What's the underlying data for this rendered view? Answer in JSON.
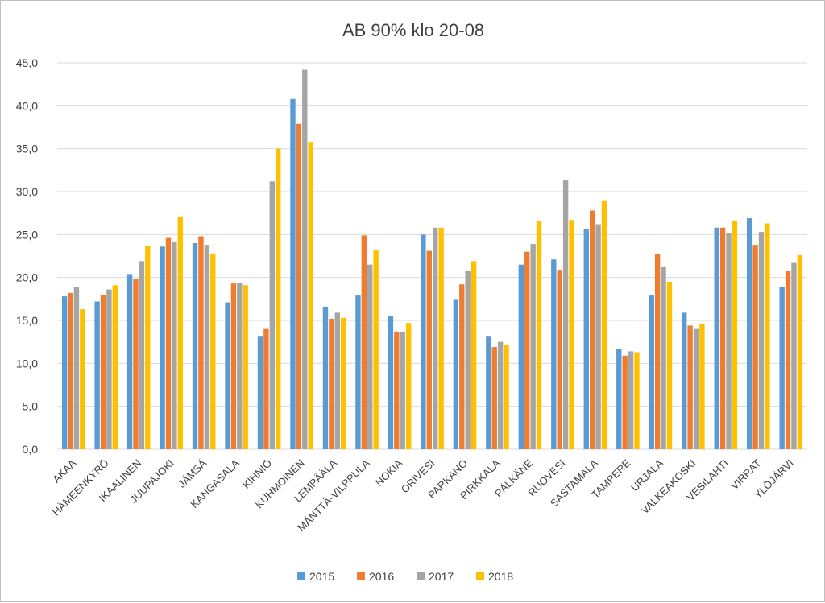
{
  "chart_data": {
    "type": "bar",
    "title": "AB 90% klo 20-08",
    "xlabel": "",
    "ylabel": "",
    "ylim": [
      0,
      45
    ],
    "ytick_step": 5,
    "ytick_labels": [
      "0,0",
      "5,0",
      "10,0",
      "15,0",
      "20,0",
      "25,0",
      "30,0",
      "35,0",
      "40,0",
      "45,0"
    ],
    "grid": true,
    "legend_position": "bottom",
    "categories": [
      "AKAA",
      "HÄMEENKYRÖ",
      "IKAALINEN",
      "JUUPAJOKI",
      "JÄMSÄ",
      "KANGASALA",
      "KIHNIÖ",
      "KUHMOINEN",
      "LEMPÄÄLÄ",
      "MÄNTTÄ-VILPPULA",
      "NOKIA",
      "ORIVESI",
      "PARKANO",
      "PIRKKALA",
      "PÄLKÄNE",
      "RUOVESI",
      "SASTAMALA",
      "TAMPERE",
      "URJALA",
      "VALKEAKOSKI",
      "VESILAHTI",
      "VIRRAT",
      "YLÖJÄRVI"
    ],
    "series": [
      {
        "name": "2015",
        "color": "#5b9bd5",
        "values": [
          17.8,
          17.2,
          20.4,
          23.6,
          24.0,
          17.1,
          13.2,
          40.8,
          16.6,
          17.9,
          15.5,
          25.0,
          17.4,
          13.2,
          21.5,
          22.1,
          25.6,
          11.7,
          17.9,
          15.9,
          25.8,
          26.9,
          18.9
        ]
      },
      {
        "name": "2016",
        "color": "#ed7d31",
        "values": [
          18.2,
          18.0,
          19.8,
          24.6,
          24.8,
          19.3,
          14.0,
          37.9,
          15.2,
          24.9,
          13.7,
          23.1,
          19.2,
          11.9,
          23.0,
          20.9,
          27.8,
          10.9,
          22.7,
          14.4,
          25.8,
          23.8,
          20.8
        ]
      },
      {
        "name": "2017",
        "color": "#a5a5a5",
        "values": [
          18.9,
          18.6,
          21.9,
          24.2,
          23.8,
          19.4,
          31.2,
          44.2,
          15.9,
          21.5,
          13.7,
          25.8,
          20.8,
          12.5,
          23.9,
          31.3,
          26.2,
          11.4,
          21.2,
          14.0,
          25.2,
          25.3,
          21.7
        ]
      },
      {
        "name": "2018",
        "color": "#ffc000",
        "values": [
          16.3,
          19.1,
          23.7,
          27.1,
          22.8,
          19.1,
          35.0,
          35.7,
          15.3,
          23.2,
          14.7,
          25.8,
          21.9,
          12.2,
          26.6,
          26.7,
          28.9,
          11.3,
          19.5,
          14.6,
          26.6,
          26.3,
          22.6
        ]
      }
    ]
  }
}
